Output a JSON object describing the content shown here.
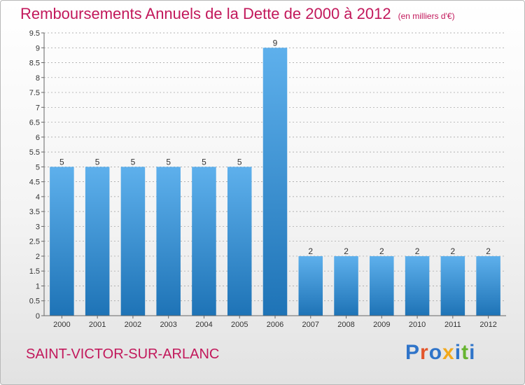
{
  "title": "Remboursements Annuels de la Dette de 2000 à 2012",
  "unit_label": "(en milliers d'€)",
  "commune": "SAINT-VICTOR-SUR-ARLANC",
  "logo": {
    "text": "Proxiti",
    "letters": [
      {
        "ch": "P",
        "color": "#2f74c9"
      },
      {
        "ch": "r",
        "color": "#e3562b"
      },
      {
        "ch": "o",
        "color": "#2f74c9"
      },
      {
        "ch": "x",
        "color": "#f2a91c"
      },
      {
        "ch": "i",
        "color": "#2f74c9"
      },
      {
        "ch": "t",
        "color": "#67b42f"
      },
      {
        "ch": "i",
        "color": "#2f74c9"
      }
    ]
  },
  "colors": {
    "title": "#c2185b",
    "bar_top": "#5eb0ec",
    "bar_bottom": "#1e73b6",
    "grid": "#9a9a9a",
    "axis": "#666666",
    "text": "#333333"
  },
  "chart_data": {
    "type": "bar",
    "title": "Remboursements Annuels de la Dette de 2000 à 2012",
    "xlabel": "",
    "ylabel": "",
    "categories": [
      "2000",
      "2001",
      "2002",
      "2003",
      "2004",
      "2005",
      "2006",
      "2007",
      "2008",
      "2009",
      "2010",
      "2011",
      "2012"
    ],
    "values": [
      5,
      5,
      5,
      5,
      5,
      5,
      9,
      2,
      2,
      2,
      2,
      2,
      2
    ],
    "data_labels": [
      "5",
      "5",
      "5",
      "5",
      "5",
      "5",
      "9",
      "2",
      "2",
      "2",
      "2",
      "2",
      "2"
    ],
    "ylim": [
      0,
      9.5
    ],
    "yticks": [
      0,
      0.5,
      1,
      1.5,
      2,
      2.5,
      3,
      3.5,
      4,
      4.5,
      5,
      5.5,
      6,
      6.5,
      7,
      7.5,
      8,
      8.5,
      9,
      9.5
    ],
    "ytick_labels": [
      "0",
      "0.5",
      "1",
      "1.5",
      "2",
      "2.5",
      "3",
      "3.5",
      "4",
      "4.5",
      "5",
      "5.5",
      "6",
      "6.5",
      "7",
      "7.5",
      "8",
      "8.5",
      "9",
      "9.5"
    ],
    "grid": "horizontal dashed",
    "legend": "none"
  }
}
